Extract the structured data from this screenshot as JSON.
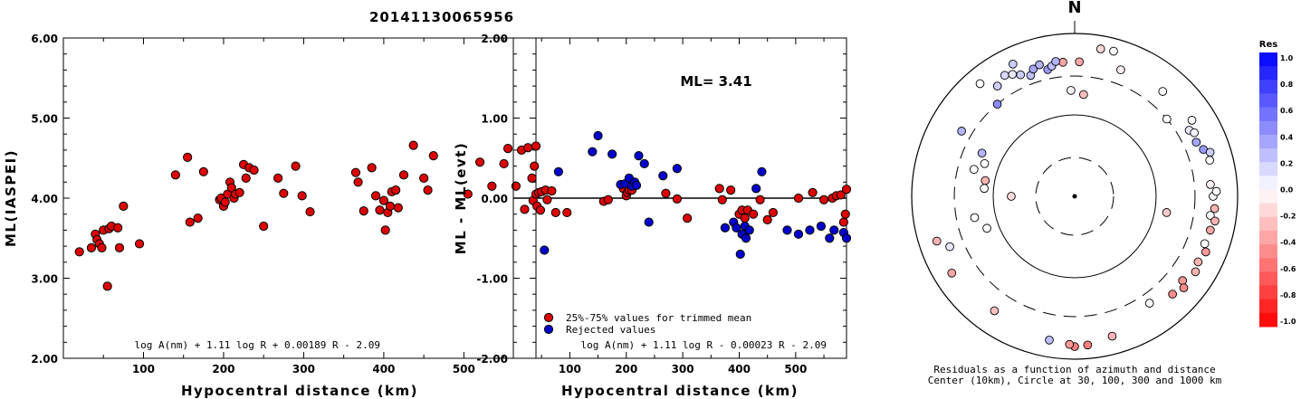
{
  "title": "20141130065956",
  "chart_data": [
    {
      "type": "scatter",
      "xlabel": "Hypocentral distance (km)",
      "ylabel": "ML(IASPEI)",
      "xlim": [
        0,
        590
      ],
      "ylim": [
        2.0,
        6.0
      ],
      "x_ticks": [
        "100",
        "200",
        "300",
        "400",
        "500"
      ],
      "y_ticks": [
        "2.00",
        "3.00",
        "4.00",
        "5.00",
        "6.00"
      ],
      "formula": "log A(nm) + 1.11 log R + 0.00189 R - 2.09",
      "series": [
        {
          "color": "#dd0000",
          "points": [
            [
              20,
              3.33
            ],
            [
              35,
              3.38
            ],
            [
              40,
              3.55
            ],
            [
              42,
              3.48
            ],
            [
              45,
              3.43
            ],
            [
              48,
              3.38
            ],
            [
              50,
              3.6
            ],
            [
              55,
              2.9
            ],
            [
              57,
              3.62
            ],
            [
              60,
              3.65
            ],
            [
              68,
              3.63
            ],
            [
              70,
              3.38
            ],
            [
              75,
              3.9
            ],
            [
              95,
              3.43
            ],
            [
              140,
              4.29
            ],
            [
              155,
              4.51
            ],
            [
              158,
              3.7
            ],
            [
              168,
              3.75
            ],
            [
              175,
              4.33
            ],
            [
              195,
              3.98
            ],
            [
              197,
              4.0
            ],
            [
              200,
              3.9
            ],
            [
              202,
              3.95
            ],
            [
              205,
              4.05
            ],
            [
              208,
              4.2
            ],
            [
              210,
              4.13
            ],
            [
              213,
              4.0
            ],
            [
              215,
              4.05
            ],
            [
              220,
              4.07
            ],
            [
              225,
              4.42
            ],
            [
              228,
              4.25
            ],
            [
              232,
              4.38
            ],
            [
              238,
              4.35
            ],
            [
              250,
              3.65
            ],
            [
              268,
              4.25
            ],
            [
              275,
              4.06
            ],
            [
              290,
              4.4
            ],
            [
              298,
              4.03
            ],
            [
              308,
              3.83
            ],
            [
              365,
              4.32
            ],
            [
              368,
              4.2
            ],
            [
              375,
              3.84
            ],
            [
              385,
              4.38
            ],
            [
              390,
              4.03
            ],
            [
              395,
              3.85
            ],
            [
              400,
              3.97
            ],
            [
              402,
              3.6
            ],
            [
              405,
              3.82
            ],
            [
              408,
              3.9
            ],
            [
              410,
              4.08
            ],
            [
              415,
              4.1
            ],
            [
              418,
              3.88
            ],
            [
              425,
              4.29
            ],
            [
              437,
              4.66
            ],
            [
              450,
              4.25
            ],
            [
              455,
              4.1
            ],
            [
              462,
              4.53
            ],
            [
              505,
              4.05
            ],
            [
              520,
              4.45
            ],
            [
              535,
              4.15
            ],
            [
              550,
              4.43
            ],
            [
              555,
              4.62
            ],
            [
              565,
              4.15
            ],
            [
              572,
              4.6
            ],
            [
              580,
              4.63
            ],
            [
              585,
              4.25
            ],
            [
              588,
              4.4
            ],
            [
              590,
              4.65
            ]
          ]
        }
      ]
    },
    {
      "type": "scatter",
      "xlabel": "Hypocentral distance (km)",
      "ylabel": "ML - ML(evt)",
      "xlim": [
        0,
        590
      ],
      "ylim": [
        -2.0,
        2.0
      ],
      "x_ticks": [
        "100",
        "200",
        "300",
        "400",
        "500"
      ],
      "y_ticks": [
        "-2.00",
        "-1.00",
        "0.00",
        "1.00",
        "2.00"
      ],
      "annotation": "ML= 3.41",
      "formula": "log A(nm) + 1.11 log R - 0.00023 R - 2.09",
      "legend_position": "bottom-left",
      "series": [
        {
          "name": "25%-75% values for trimmed mean",
          "color": "#dd0000",
          "points": [
            [
              20,
              -0.14
            ],
            [
              35,
              -0.03
            ],
            [
              40,
              0.05
            ],
            [
              42,
              -0.1
            ],
            [
              45,
              0.07
            ],
            [
              48,
              -0.15
            ],
            [
              50,
              0.08
            ],
            [
              57,
              0.1
            ],
            [
              60,
              -0.02
            ],
            [
              68,
              0.09
            ],
            [
              75,
              -0.18
            ],
            [
              95,
              -0.18
            ],
            [
              160,
              -0.04
            ],
            [
              168,
              -0.02
            ],
            [
              195,
              0.12
            ],
            [
              200,
              0.03
            ],
            [
              202,
              0.07
            ],
            [
              205,
              0.1
            ],
            [
              210,
              0.1
            ],
            [
              270,
              0.06
            ],
            [
              290,
              -0.01
            ],
            [
              308,
              -0.25
            ],
            [
              365,
              0.12
            ],
            [
              370,
              -0.02
            ],
            [
              385,
              0.1
            ],
            [
              400,
              -0.2
            ],
            [
              405,
              -0.15
            ],
            [
              410,
              -0.25
            ],
            [
              415,
              -0.15
            ],
            [
              425,
              -0.2
            ],
            [
              437,
              -0.02
            ],
            [
              450,
              -0.27
            ],
            [
              460,
              -0.18
            ],
            [
              505,
              0.0
            ],
            [
              530,
              0.07
            ],
            [
              550,
              -0.02
            ],
            [
              565,
              0.0
            ],
            [
              572,
              0.03
            ],
            [
              580,
              0.04
            ],
            [
              585,
              -0.3
            ],
            [
              588,
              -0.2
            ],
            [
              590,
              0.11
            ]
          ]
        },
        {
          "name": "Rejected values",
          "color": "#0000cc",
          "points": [
            [
              55,
              -0.65
            ],
            [
              80,
              0.33
            ],
            [
              140,
              0.58
            ],
            [
              150,
              0.78
            ],
            [
              175,
              0.55
            ],
            [
              190,
              0.17
            ],
            [
              198,
              0.18
            ],
            [
              205,
              0.25
            ],
            [
              210,
              0.15
            ],
            [
              215,
              0.2
            ],
            [
              218,
              0.16
            ],
            [
              222,
              0.53
            ],
            [
              232,
              0.43
            ],
            [
              240,
              -0.3
            ],
            [
              265,
              0.28
            ],
            [
              290,
              0.37
            ],
            [
              375,
              -0.37
            ],
            [
              390,
              -0.3
            ],
            [
              395,
              -0.37
            ],
            [
              402,
              -0.7
            ],
            [
              405,
              -0.45
            ],
            [
              410,
              -0.35
            ],
            [
              412,
              -0.5
            ],
            [
              418,
              -0.4
            ],
            [
              430,
              0.12
            ],
            [
              440,
              0.33
            ],
            [
              485,
              -0.4
            ],
            [
              505,
              -0.45
            ],
            [
              525,
              -0.4
            ],
            [
              545,
              -0.35
            ],
            [
              560,
              -0.5
            ],
            [
              568,
              -0.4
            ],
            [
              585,
              -0.43
            ],
            [
              590,
              -0.5
            ]
          ]
        }
      ]
    },
    {
      "type": "polar-scatter",
      "north_label": "N",
      "caption_line1": "Residuals as a function of azimuth and distance",
      "caption_line2": "Center (10km), Circle at 30, 100, 300 and 1000 km",
      "colorbar_title": "Res",
      "colorbar_ticks": [
        "1.0",
        "0.8",
        "0.6",
        "0.4",
        "0.2",
        "0.0",
        "-0.2",
        "-0.4",
        "-0.6",
        "-0.8",
        "-1.0"
      ],
      "scale": "log distance",
      "distances_km": [
        10,
        30,
        100,
        300,
        1000
      ],
      "stations": [
        {
          "az": 358,
          "r": 200,
          "res": 0.05
        },
        {
          "az": 5,
          "r": 180,
          "res": -0.25
        },
        {
          "az": 20,
          "r": 450,
          "res": -0.05
        },
        {
          "az": 2,
          "r": 450,
          "res": -0.35
        },
        {
          "az": 355,
          "r": 450,
          "res": -0.35
        },
        {
          "az": 40,
          "r": 480,
          "res": 0.0
        },
        {
          "az": 50,
          "r": 300,
          "res": 0.0
        },
        {
          "az": 60,
          "r": 420,
          "res": 0.1
        },
        {
          "az": 62,
          "r": 460,
          "res": 0.05
        },
        {
          "az": 57,
          "r": 520,
          "res": 0.0
        },
        {
          "az": 66,
          "r": 430,
          "res": 0.35
        },
        {
          "az": 70,
          "r": 480,
          "res": 0.4
        },
        {
          "az": 75,
          "r": 520,
          "res": 0.0
        },
        {
          "az": 72,
          "r": 560,
          "res": 0.2
        },
        {
          "az": 100,
          "r": 140,
          "res": -0.2
        },
        {
          "az": 85,
          "r": 470,
          "res": -0.05
        },
        {
          "az": 90,
          "r": 500,
          "res": 0.0
        },
        {
          "az": 88,
          "r": 550,
          "res": 0.0
        },
        {
          "az": 95,
          "r": 530,
          "res": -0.3
        },
        {
          "az": 98,
          "r": 480,
          "res": 0.0
        },
        {
          "az": 100,
          "r": 560,
          "res": -0.3
        },
        {
          "az": 104,
          "r": 520,
          "res": -0.35
        },
        {
          "az": 110,
          "r": 500,
          "res": 0.0
        },
        {
          "az": 113,
          "r": 560,
          "res": -0.4
        },
        {
          "az": 118,
          "r": 520,
          "res": -0.3
        },
        {
          "az": 122,
          "r": 560,
          "res": -0.3
        },
        {
          "az": 128,
          "r": 480,
          "res": -0.4
        },
        {
          "az": 130,
          "r": 560,
          "res": -0.45
        },
        {
          "az": 135,
          "r": 500,
          "res": -0.45
        },
        {
          "az": 145,
          "r": 400,
          "res": 0.0
        },
        {
          "az": 165,
          "r": 600,
          "res": -0.3
        },
        {
          "az": 175,
          "r": 680,
          "res": -0.5
        },
        {
          "az": 180,
          "r": 700,
          "res": -0.5
        },
        {
          "az": 182,
          "r": 660,
          "res": -0.4
        },
        {
          "az": 190,
          "r": 620,
          "res": 0.25
        },
        {
          "az": 215,
          "r": 520,
          "res": -0.25
        },
        {
          "az": 238,
          "r": 600,
          "res": -0.35
        },
        {
          "az": 248,
          "r": 450,
          "res": 0.1
        },
        {
          "az": 252,
          "r": 600,
          "res": -0.3
        },
        {
          "az": 270,
          "r": 60,
          "res": -0.15
        },
        {
          "az": 280,
          "r": 130,
          "res": -0.3
        },
        {
          "az": 285,
          "r": 190,
          "res": 0.0
        },
        {
          "az": 290,
          "r": 150,
          "res": 0.0
        },
        {
          "az": 275,
          "r": 130,
          "res": 0.0
        },
        {
          "az": 295,
          "r": 180,
          "res": 0.3
        },
        {
          "az": 300,
          "r": 400,
          "res": 0.3
        },
        {
          "az": 320,
          "r": 300,
          "res": 0.45
        },
        {
          "az": 325,
          "r": 450,
          "res": 0.2
        },
        {
          "az": 330,
          "r": 520,
          "res": 0.15
        },
        {
          "az": 333,
          "r": 480,
          "res": 0.1
        },
        {
          "az": 336,
          "r": 430,
          "res": 0.2
        },
        {
          "az": 340,
          "r": 380,
          "res": 0.25
        },
        {
          "az": 342,
          "r": 440,
          "res": 0.35
        },
        {
          "az": 345,
          "r": 470,
          "res": 0.3
        },
        {
          "az": 348,
          "r": 390,
          "res": 0.4
        },
        {
          "az": 350,
          "r": 420,
          "res": 0.25
        },
        {
          "az": 352,
          "r": 470,
          "res": 0.3
        },
        {
          "az": 335,
          "r": 620,
          "res": 0.2
        },
        {
          "az": 320,
          "r": 640,
          "res": 0.0
        },
        {
          "az": 10,
          "r": 690,
          "res": -0.15
        },
        {
          "az": 15,
          "r": 700,
          "res": 0.0
        },
        {
          "az": 250,
          "r": 140,
          "res": 0.0
        },
        {
          "az": 258,
          "r": 180,
          "res": 0.0
        }
      ]
    }
  ]
}
